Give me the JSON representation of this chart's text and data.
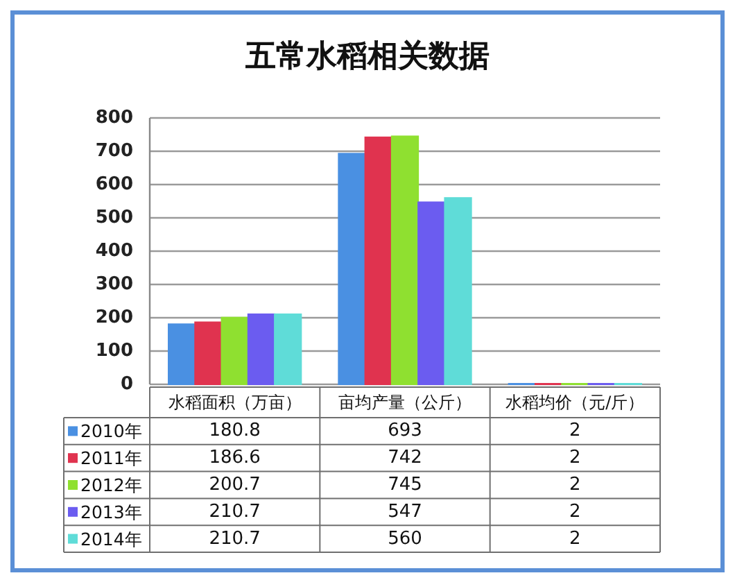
{
  "chart_data": {
    "type": "bar",
    "title": "五常水稻相关数据",
    "categories": [
      "水稻面积（万亩）",
      "亩均产量（公斤）",
      "水稻均价（元/斤）"
    ],
    "series": [
      {
        "name": "2010年",
        "color": "#4a90e2",
        "values": [
          180.8,
          693,
          2
        ]
      },
      {
        "name": "2011年",
        "color": "#e0334f",
        "values": [
          186.6,
          742,
          2
        ]
      },
      {
        "name": "2012年",
        "color": "#8fe030",
        "values": [
          200.7,
          745,
          2
        ]
      },
      {
        "name": "2013年",
        "color": "#6b5cf0",
        "values": [
          210.7,
          547,
          2
        ]
      },
      {
        "name": "2014年",
        "color": "#5fdcd8",
        "values": [
          210.7,
          560,
          2
        ]
      }
    ],
    "ylim": [
      0,
      800
    ],
    "yticks": [
      0,
      100,
      200,
      300,
      400,
      500,
      600,
      700,
      800
    ],
    "grid": "y",
    "legend": "bottom",
    "data_labels": true
  }
}
